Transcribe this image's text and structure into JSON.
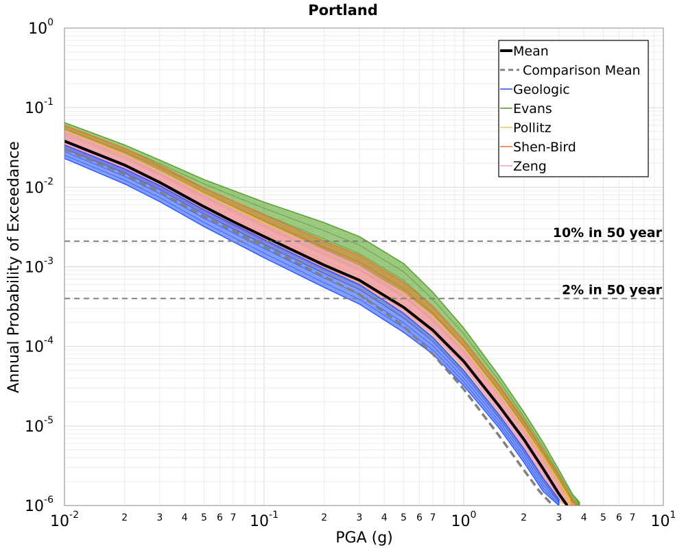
{
  "chart_data": {
    "type": "line",
    "title": "Portland",
    "xlabel": "PGA (g)",
    "ylabel": "Annual Probability of Exceedance",
    "xscale": "log",
    "yscale": "log",
    "xlim": [
      0.01,
      10
    ],
    "ylim": [
      1e-06,
      1
    ],
    "grid": true,
    "legend_position": "top-right",
    "x_major_ticks": [
      {
        "value": 0.01,
        "base": "10",
        "exp": "-2"
      },
      {
        "value": 0.1,
        "base": "10",
        "exp": "-1"
      },
      {
        "value": 1,
        "base": "10",
        "exp": "0"
      },
      {
        "value": 10,
        "base": "10",
        "exp": "1"
      }
    ],
    "y_major_ticks": [
      {
        "value": 1e-06,
        "base": "10",
        "exp": "-6"
      },
      {
        "value": 1e-05,
        "base": "10",
        "exp": "-5"
      },
      {
        "value": 0.0001,
        "base": "10",
        "exp": "-4"
      },
      {
        "value": 0.001,
        "base": "10",
        "exp": "-3"
      },
      {
        "value": 0.01,
        "base": "10",
        "exp": "-2"
      },
      {
        "value": 0.1,
        "base": "10",
        "exp": "-1"
      },
      {
        "value": 1,
        "base": "10",
        "exp": "0"
      }
    ],
    "x_minor_tick_labels": [
      "2",
      "3",
      "4",
      "5",
      "6",
      "7"
    ],
    "reference_lines": [
      {
        "label": "10% in 50 year",
        "y": 0.0021,
        "color": "#808080"
      },
      {
        "label": "2% in 50 year",
        "y": 0.0004,
        "color": "#808080"
      }
    ],
    "series": [
      {
        "name": "Mean",
        "color": "#000000",
        "style": "solid",
        "x": [
          0.01,
          0.02,
          0.03,
          0.05,
          0.07,
          0.1,
          0.2,
          0.3,
          0.5,
          0.7,
          1.0,
          1.5,
          2.0,
          2.5,
          3.0,
          3.3
        ],
        "y": [
          0.038,
          0.019,
          0.0115,
          0.0057,
          0.0037,
          0.0024,
          0.00105,
          0.00068,
          0.00031,
          0.00016,
          6.5e-05,
          1.8e-05,
          6.8e-06,
          2.9e-06,
          1.4e-06,
          1e-06
        ]
      },
      {
        "name": "Comparison Mean",
        "color": "#808080",
        "style": "dashed",
        "x": [
          0.01,
          0.02,
          0.03,
          0.05,
          0.1,
          0.2,
          0.3,
          0.5,
          0.7,
          1.0,
          1.5,
          2.0,
          2.4,
          2.8
        ],
        "y": [
          0.03,
          0.0145,
          0.0087,
          0.0043,
          0.0018,
          0.00075,
          0.00045,
          0.00018,
          8e-05,
          2.9e-05,
          7.6e-06,
          2.8e-06,
          1.5e-06,
          1e-06
        ]
      },
      {
        "name": "Geologic",
        "color": "#1f4fff",
        "style": "band",
        "x": [
          0.01,
          0.02,
          0.03,
          0.05,
          0.1,
          0.2,
          0.3,
          0.5,
          0.7,
          1.0,
          1.5,
          2.0,
          2.5,
          3.0
        ],
        "y_low": [
          0.023,
          0.011,
          0.0066,
          0.0032,
          0.0013,
          0.00055,
          0.00034,
          0.00015,
          8e-05,
          3.2e-05,
          9.5e-06,
          3.5e-06,
          1.5e-06,
          1e-06
        ],
        "y_high": [
          0.034,
          0.017,
          0.0105,
          0.0052,
          0.0022,
          0.00095,
          0.0006,
          0.00026,
          0.00013,
          5e-05,
          1.4e-05,
          5.2e-06,
          2.2e-06,
          1.2e-06
        ]
      },
      {
        "name": "Evans",
        "color": "#4a9a1c",
        "style": "band",
        "x": [
          0.01,
          0.02,
          0.03,
          0.05,
          0.1,
          0.2,
          0.3,
          0.5,
          0.7,
          1.0,
          1.5,
          2.0,
          2.5,
          3.0,
          3.5,
          3.8
        ],
        "y_low": [
          0.045,
          0.023,
          0.0145,
          0.0075,
          0.0032,
          0.0014,
          0.0009,
          0.00042,
          0.00021,
          8.5e-05,
          2.4e-05,
          8.5e-06,
          3.6e-06,
          1.8e-06,
          1.1e-06,
          1e-06
        ],
        "y_high": [
          0.065,
          0.034,
          0.022,
          0.0125,
          0.0065,
          0.0036,
          0.0024,
          0.0011,
          0.00048,
          0.00017,
          4.3e-05,
          1.5e-05,
          6.2e-06,
          2.8e-06,
          1.4e-06,
          1.1e-06
        ]
      },
      {
        "name": "Pollitz",
        "color": "#f0c850",
        "style": "band",
        "x": [
          0.01,
          0.02,
          0.03,
          0.05,
          0.1,
          0.2,
          0.3,
          0.5,
          0.7,
          1.0,
          1.5,
          2.0,
          2.5,
          3.0,
          3.4
        ],
        "y_low": [
          0.03,
          0.015,
          0.0093,
          0.0046,
          0.0019,
          0.00082,
          0.00052,
          0.00023,
          0.00012,
          4.7e-05,
          1.3e-05,
          4.8e-06,
          2e-06,
          1.1e-06,
          1e-06
        ],
        "y_high": [
          0.052,
          0.026,
          0.016,
          0.0083,
          0.0036,
          0.0016,
          0.001,
          0.00047,
          0.00024,
          9.5e-05,
          2.6e-05,
          9.5e-06,
          4.1e-06,
          2e-06,
          1.2e-06
        ]
      },
      {
        "name": "Shen-Bird",
        "color": "#e07a30",
        "style": "band",
        "x": [
          0.01,
          0.02,
          0.03,
          0.05,
          0.1,
          0.2,
          0.3,
          0.5,
          0.7,
          1.0,
          1.5,
          2.0,
          2.5,
          3.0,
          3.5,
          3.7
        ],
        "y_low": [
          0.034,
          0.017,
          0.0105,
          0.0053,
          0.0022,
          0.00098,
          0.00063,
          0.00029,
          0.00015,
          6e-05,
          1.7e-05,
          6.2e-06,
          2.6e-06,
          1.3e-06,
          1e-06,
          1e-06
        ],
        "y_high": [
          0.06,
          0.031,
          0.019,
          0.0098,
          0.0045,
          0.0021,
          0.0014,
          0.00064,
          0.00032,
          0.00012,
          3.3e-05,
          1.2e-05,
          5e-06,
          2.4e-06,
          1.2e-06,
          1e-06
        ]
      },
      {
        "name": "Zeng",
        "color": "#f49ad8",
        "style": "band",
        "x": [
          0.01,
          0.02,
          0.03,
          0.05,
          0.1,
          0.2,
          0.3,
          0.5,
          0.7,
          1.0,
          1.5,
          2.0,
          2.5,
          3.0,
          3.3
        ],
        "y_low": [
          0.032,
          0.016,
          0.0098,
          0.0049,
          0.0021,
          0.00092,
          0.00059,
          0.00027,
          0.00014,
          5.5e-05,
          1.5e-05,
          5.5e-06,
          2.3e-06,
          1.2e-06,
          1e-06
        ],
        "y_high": [
          0.05,
          0.025,
          0.0155,
          0.0079,
          0.0034,
          0.0016,
          0.00102,
          0.00046,
          0.00023,
          9e-05,
          2.4e-05,
          8.8e-06,
          3.7e-06,
          1.8e-06,
          1.1e-06
        ]
      }
    ]
  }
}
